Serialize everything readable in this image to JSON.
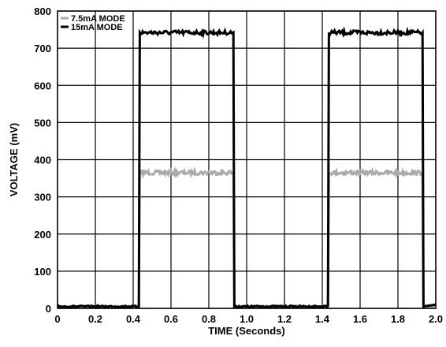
{
  "chart_data": {
    "type": "line",
    "title": "",
    "xlabel": "TIME (Seconds)",
    "ylabel": "VOLTAGE (mV)",
    "xlim": [
      0,
      2.0
    ],
    "ylim": [
      0,
      800
    ],
    "x_ticks": [
      0,
      0.2,
      0.4,
      0.6,
      0.8,
      1.0,
      1.2,
      1.4,
      1.6,
      1.8,
      2.0
    ],
    "x_tick_labels": [
      "0",
      "0.2",
      "0.4",
      "0.6",
      "0.8",
      "1.0",
      "1.2",
      "1.4",
      "1.6",
      "1.8",
      "2.0"
    ],
    "y_ticks": [
      0,
      100,
      200,
      300,
      400,
      500,
      600,
      700,
      800
    ],
    "y_tick_labels": [
      "0",
      "100",
      "200",
      "300",
      "400",
      "500",
      "600",
      "700",
      "800"
    ],
    "grid": true,
    "legend_position": "top-left",
    "series": [
      {
        "name": "7.5mA MODE",
        "color": "#aaaaaa",
        "x": [
          0,
          0.43,
          0.435,
          0.93,
          0.935,
          1.43,
          1.435,
          1.93,
          1.935,
          2.0
        ],
        "y": [
          5,
          5,
          365,
          365,
          5,
          5,
          365,
          365,
          5,
          5
        ]
      },
      {
        "name": "15mA MODE",
        "color": "#000000",
        "x": [
          0,
          0.43,
          0.435,
          0.93,
          0.935,
          1.43,
          1.435,
          1.93,
          1.935,
          2.0
        ],
        "y": [
          5,
          5,
          742,
          742,
          5,
          5,
          742,
          742,
          5,
          10
        ]
      }
    ]
  }
}
